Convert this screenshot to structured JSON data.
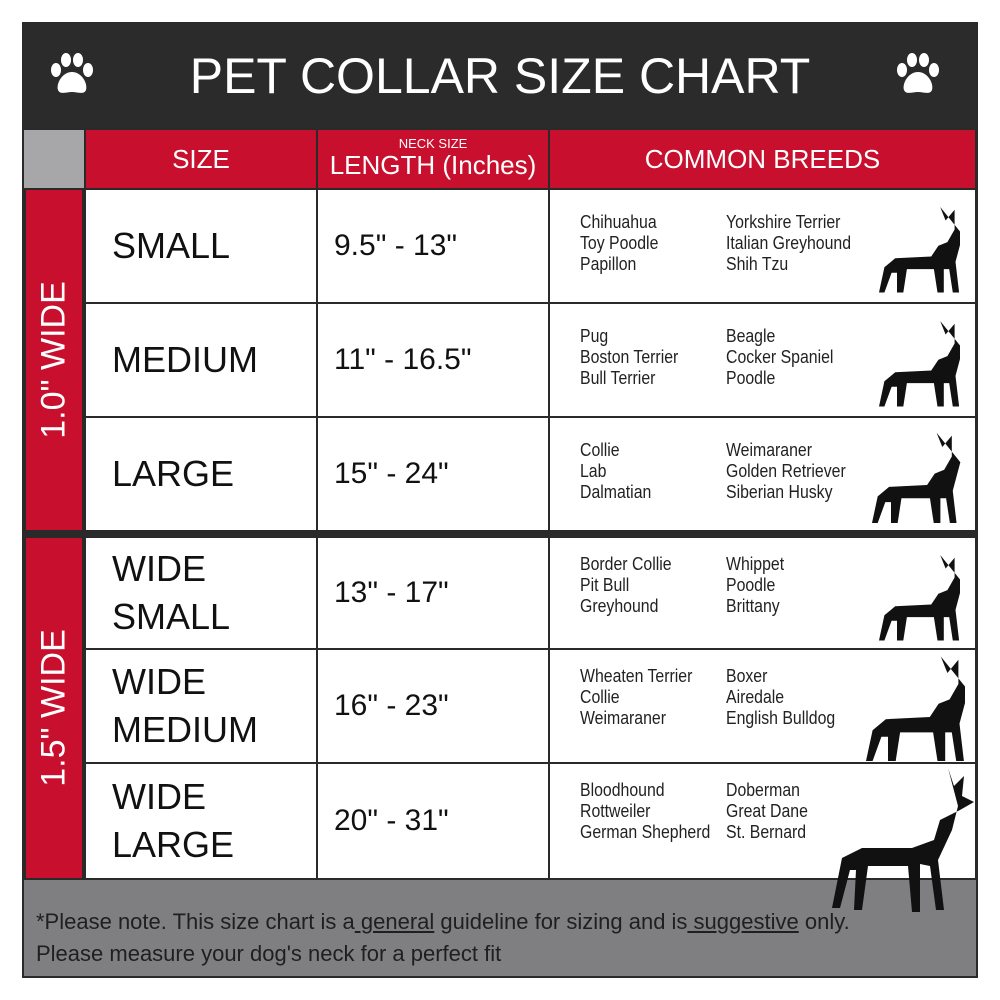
{
  "title": "PET COLLAR SIZE CHART",
  "icons": [
    "paw-icon",
    "paw-icon"
  ],
  "colors": {
    "red": "#c8102e",
    "dark": "#2b2b2b",
    "gray": "#7f7f82"
  },
  "columns": {
    "size": "SIZE",
    "length_small": "NECK SIZE",
    "length": "LENGTH (Inches)",
    "breeds": "COMMON BREEDS"
  },
  "groups": [
    "1.0\" WIDE",
    "1.5\" WIDE"
  ],
  "rows": [
    {
      "size": [
        "SMALL"
      ],
      "length": "9.5\" - 13\"",
      "breeds1": [
        "Chihuahua",
        "Toy Poodle",
        "Papillon"
      ],
      "breeds2": [
        "Yorkshire Terrier",
        "Italian Greyhound",
        "Shih Tzu"
      ]
    },
    {
      "size": [
        "MEDIUM"
      ],
      "length": "11\" - 16.5\"",
      "breeds1": [
        "Pug",
        "Boston Terrier",
        "Bull Terrier"
      ],
      "breeds2": [
        "Beagle",
        "Cocker Spaniel",
        "Poodle"
      ]
    },
    {
      "size": [
        "LARGE"
      ],
      "length": "15\" - 24\"",
      "breeds1": [
        "Collie",
        "Lab",
        "Dalmatian"
      ],
      "breeds2": [
        "Weimaraner",
        "Golden Retriever",
        "Siberian Husky"
      ]
    },
    {
      "size": [
        "WIDE",
        "SMALL"
      ],
      "length": "13\" - 17\"",
      "breeds1": [
        "Border Collie",
        "Pit Bull",
        "Greyhound"
      ],
      "breeds2": [
        "Whippet",
        "Poodle",
        "Brittany"
      ]
    },
    {
      "size": [
        "WIDE",
        "MEDIUM"
      ],
      "length": "16\" - 23\"",
      "breeds1": [
        "Wheaten Terrier",
        "Collie",
        "Weimaraner"
      ],
      "breeds2": [
        "Boxer",
        "Airedale",
        "English Bulldog"
      ]
    },
    {
      "size": [
        "WIDE",
        "LARGE"
      ],
      "length": "20\" - 31\"",
      "breeds1": [
        "Bloodhound",
        "Rottweiler",
        "German Shepherd"
      ],
      "breeds2": [
        "Doberman",
        "Great Dane",
        "St. Bernard"
      ]
    }
  ],
  "footer": {
    "p1": "*Please note. This size chart is a",
    "u1": " general",
    "p2": " guideline for sizing and is",
    "u2": " suggestive",
    "p3": " only.",
    "line2": "Please measure your dog's neck for a perfect fit"
  }
}
